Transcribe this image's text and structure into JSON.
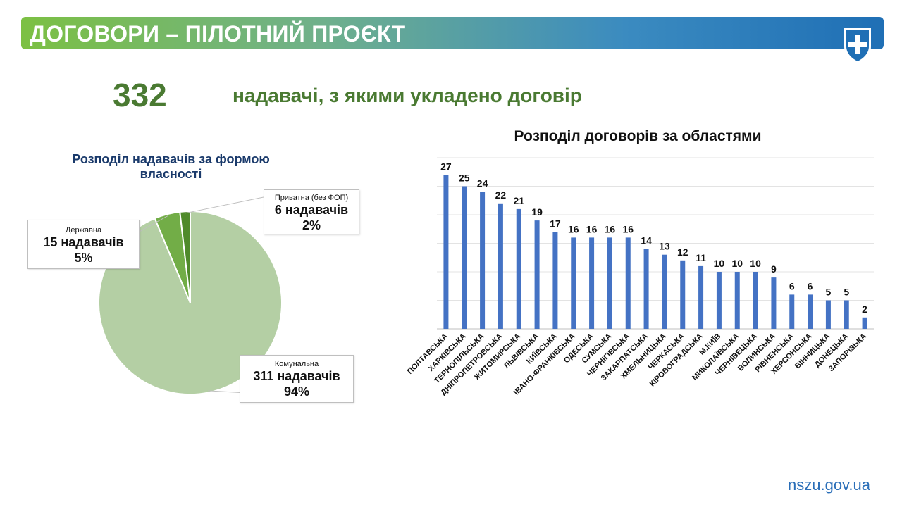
{
  "header": {
    "title": "ДОГОВОРИ – ПІЛОТНИЙ ПРОЄКТ",
    "logo_icon": "medical-cross-shield-icon",
    "gradient_colors": [
      "#7cc043",
      "#1f6fb5"
    ]
  },
  "summary": {
    "number": "332",
    "label": "надавачі, з якими укладено договір"
  },
  "footer": {
    "url": "nszu.gov.ua"
  },
  "chart_data": [
    {
      "type": "pie",
      "title": "Розподіл надавачів за формою власності",
      "slices": [
        {
          "category": "Комунальна",
          "value_text": "311 надавачів",
          "percent_text": "94%",
          "value": 311,
          "color": "#b4cfa4"
        },
        {
          "category": "Державна",
          "value_text": "15  надавачів",
          "percent_text": "5%",
          "value": 15,
          "color": "#72ad47"
        },
        {
          "category": "Приватна (без ФОП)",
          "value_text": "6 надавачів",
          "percent_text": "2%",
          "value": 6,
          "color": "#4f8a2a"
        }
      ]
    },
    {
      "type": "bar",
      "title": "Розподіл договорів за областями",
      "categories": [
        "ПОЛТАВСЬКА",
        "ХАРКІВСЬКА",
        "ТЕРНОПІЛЬСЬКА",
        "ДНІПРОПЕТРОВСЬКА",
        "ЖИТОМИРСЬКА",
        "ЛЬВІВСЬКА",
        "КИЇВСЬКА",
        "ІВАНО-ФРАНКІВСЬКА",
        "ОДЕСЬКА",
        "СУМСЬКА",
        "ЧЕРНІГІВСЬКА",
        "ЗАКАРПАТСЬКА",
        "ХМЕЛЬНИЦЬКА",
        "ЧЕРКАСЬКА",
        "КІРОВОГРАДСЬКА",
        "М.КИЇВ",
        "МИКОЛАЇВСЬКА",
        "ЧЕРНІВЕЦЬКА",
        "ВОЛИНСЬКА",
        "РІВНЕНСЬКА",
        "ХЕРСОНСЬКА",
        "ВІННИЦЬКА",
        "ДОНЕЦЬКА",
        "ЗАПОРІЗЬКА"
      ],
      "values": [
        27,
        25,
        24,
        22,
        21,
        19,
        17,
        16,
        16,
        16,
        16,
        14,
        13,
        12,
        11,
        10,
        10,
        10,
        9,
        6,
        6,
        5,
        5,
        2
      ],
      "ylim": [
        0,
        30
      ],
      "grid": true,
      "bar_color": "#4472c4"
    }
  ]
}
